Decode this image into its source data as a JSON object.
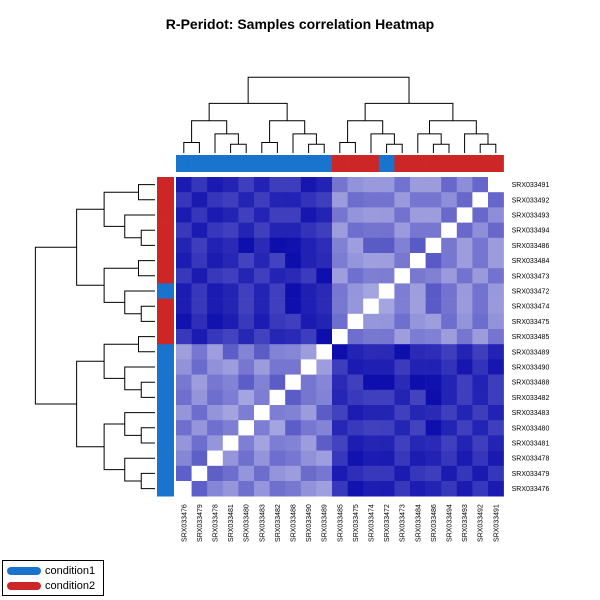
{
  "chart_data": {
    "type": "heatmap",
    "title": "R-Peridot: Samples correlation Heatmap",
    "columns": [
      "SRX033476",
      "SRX033479",
      "SRX033478",
      "SRX033481",
      "SRX033480",
      "SRX033483",
      "SRX033482",
      "SRX033488",
      "SRX033490",
      "SRX033489",
      "SRX033485",
      "SRX033475",
      "SRX033474",
      "SRX033472",
      "SRX033473",
      "SRX033484",
      "SRX033486",
      "SRX033494",
      "SRX033493",
      "SRX033492",
      "SRX033491"
    ],
    "rows": [
      "SRX033491",
      "SRX033492",
      "SRX033493",
      "SRX033494",
      "SRX033486",
      "SRX033484",
      "SRX033473",
      "SRX033472",
      "SRX033474",
      "SRX033475",
      "SRX033485",
      "SRX033489",
      "SRX033490",
      "SRX033488",
      "SRX033482",
      "SRX033483",
      "SRX033480",
      "SRX033481",
      "SRX033478",
      "SRX033479",
      "SRX033476"
    ],
    "column_conditions": [
      "condition1",
      "condition1",
      "condition1",
      "condition1",
      "condition1",
      "condition1",
      "condition1",
      "condition1",
      "condition1",
      "condition1",
      "condition2",
      "condition2",
      "condition2",
      "condition1",
      "condition2",
      "condition2",
      "condition2",
      "condition2",
      "condition2",
      "condition2",
      "condition2"
    ],
    "row_conditions": [
      "condition2",
      "condition2",
      "condition2",
      "condition2",
      "condition2",
      "condition2",
      "condition2",
      "condition1",
      "condition2",
      "condition2",
      "condition2",
      "condition1",
      "condition1",
      "condition1",
      "condition1",
      "condition1",
      "condition1",
      "condition1",
      "condition1",
      "condition1",
      "condition1"
    ],
    "color_scale": {
      "low": "#0000a8",
      "high": "#ffffff"
    },
    "legend_placement": "bottom-left"
  },
  "legend": [
    {
      "label": "condition1",
      "color": "#1874cd"
    },
    {
      "label": "condition2",
      "color": "#cd2626"
    }
  ]
}
